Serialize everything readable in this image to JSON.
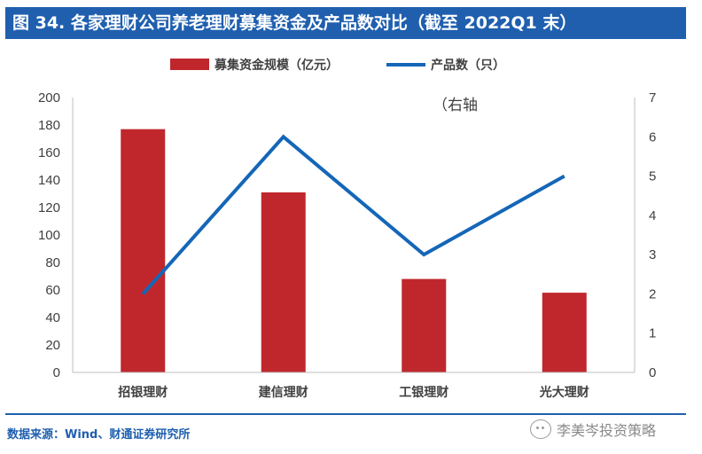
{
  "header": {
    "title": "图 34. 各家理财公司养老理财募集资金及产品数对比（截至 2022Q1 末）"
  },
  "footer": {
    "source": "数据来源：Wind、财通证券研究所",
    "watermark": "李美岑投资策略",
    "watermark_icon": "wechat-icon"
  },
  "colors": {
    "bar": "#C0272D",
    "line": "#1466B8",
    "title_bg": "#1F5FAE"
  },
  "chart_data": {
    "type": "bar",
    "title": "",
    "categories": [
      "招银理财",
      "建信理财",
      "工银理财",
      "光大理财"
    ],
    "series": [
      {
        "name": "募集资金规模（亿元）",
        "type": "bar",
        "axis": "left",
        "values": [
          177,
          131,
          68,
          58
        ]
      },
      {
        "name": "产品数（只）",
        "type": "line",
        "axis": "right",
        "values": [
          2,
          6,
          3,
          5
        ]
      }
    ],
    "y_left": {
      "min": 0,
      "max": 200,
      "step": 20
    },
    "y_right": {
      "min": 0,
      "max": 7,
      "step": 1
    },
    "annotation": "（右轴",
    "legend_position": "top",
    "grid": false
  }
}
